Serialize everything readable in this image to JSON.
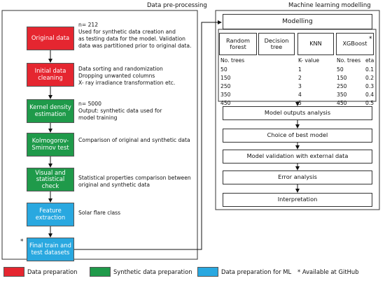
{
  "panels": {
    "left_title": "Data pre-processing",
    "right_title": "Machine learning modelling"
  },
  "pipeline": [
    {
      "label": "Original data",
      "notes": [
        "n= 212",
        "Used for synthetic data creation and",
        "as testing data for the model. Validation",
        "data was partitioned prior to original data."
      ]
    },
    {
      "label": "Initial data cleaning",
      "notes": [
        "Data sorting and randomization",
        "Dropping unwanted columns",
        "X- ray irradiance transformation etc."
      ]
    },
    {
      "label": "Kernel density estimation",
      "notes": [
        "n= 5000",
        "Output: synthetic data used for",
        "model training"
      ]
    },
    {
      "label": "Kolmogorov-Smirnov test",
      "notes": [
        "Comparison of original and synthetic data"
      ]
    },
    {
      "label": "Visual and statistical check",
      "notes": [
        "Statistical properties comparison between",
        "original and synthetic data"
      ]
    },
    {
      "label": "Feature extraction",
      "notes": [
        "Solar flare class"
      ]
    },
    {
      "label": "Final train and test datasets",
      "notes": []
    }
  ],
  "final_marker": "*",
  "modelling": {
    "title": "Modelling",
    "models": [
      "Random forest",
      "Decision tree",
      "KNN",
      "XGBoost"
    ],
    "model_marker": "*",
    "params": {
      "headers": [
        "No. trees",
        "K- value",
        "No. trees",
        "eta"
      ],
      "rows": [
        [
          50,
          1,
          50,
          0.1
        ],
        [
          150,
          2,
          150,
          0.2
        ],
        [
          250,
          3,
          250,
          0.3
        ],
        [
          350,
          4,
          350,
          0.4
        ],
        [
          450,
          5,
          450,
          0.5
        ]
      ]
    }
  },
  "steps": [
    "Model outputs analysis",
    "Choice of best model",
    "Model validation with external data",
    "Error analysis",
    "Interpretation"
  ],
  "legend": [
    "Data preparation",
    "Synthetic data preparation",
    "Data preparation for ML"
  ],
  "footnote": "* Available at GitHub"
}
